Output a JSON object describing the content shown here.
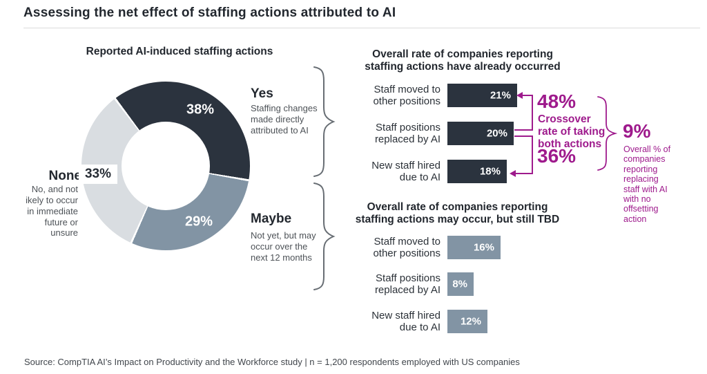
{
  "title": "Assessing the net effect of staffing actions attributed to AI",
  "source": "Source: CompTIA AI’s Impact on Productivity and the Workforce study | n = 1,200 respondents employed with US companies",
  "colors": {
    "dark_navy": "#2b333e",
    "slate": "#8294a4",
    "light_gray": "#d9dde1",
    "magenta": "#9e1a8c",
    "brace_gray": "#676d73",
    "heading_text": "#22272e",
    "body_text": "#4d5257"
  },
  "chart_data": [
    {
      "type": "pie",
      "subtype": "donut",
      "title": "Reported AI-induced staffing actions",
      "start_angle_deg": 323,
      "slices": [
        {
          "label": "Yes",
          "value": 38,
          "pct_label": "38%",
          "color": "#2b333e",
          "desc": "Staffing changes\nmade directly\nattributed to AI"
        },
        {
          "label": "Maybe",
          "value": 29,
          "pct_label": "29%",
          "color": "#8294a4",
          "desc": "Not yet, but may\noccur over the\nnext 12 months"
        },
        {
          "label": "None",
          "value": 33,
          "pct_label": "33%",
          "color": "#d9dde1",
          "desc": "No, and not\nikely to occur\nin immediate\nfuture or\nunsure"
        }
      ]
    },
    {
      "type": "bar",
      "title": "Overall rate of companies reporting\nstaffing actions have already occurred",
      "categories": [
        "Staff moved to\nother positions",
        "Staff positions\nreplaced by AI",
        "New staff hired\ndue to AI"
      ],
      "values": [
        21,
        20,
        18
      ],
      "value_labels": [
        "21%",
        "20%",
        "18%"
      ],
      "bar_color": "#2b333e",
      "xlim": [
        0,
        100
      ],
      "orientation": "horizontal",
      "grid": false
    },
    {
      "type": "bar",
      "title": "Overall rate of companies reporting\nstaffing actions may occur, but still TBD",
      "categories": [
        "Staff moved to\nother positions",
        "Staff positions\nreplaced by AI",
        "New staff hired\ndue to AI"
      ],
      "values": [
        16,
        8,
        12
      ],
      "value_labels": [
        "16%",
        "8%",
        "12%"
      ],
      "bar_color": "#8294a4",
      "xlim": [
        0,
        100
      ],
      "orientation": "horizontal",
      "grid": false
    }
  ],
  "annotations": {
    "crossover_rate_top": "48%",
    "crossover_label": "Crossover\nrate of taking\nboth actions",
    "crossover_rate_bottom": "36%",
    "net_replacement_rate": "9%",
    "net_replacement_label": "Overall % of\ncompanies\nreporting\nreplacing\nstaff with AI\nwith no\noffsetting\naction"
  }
}
